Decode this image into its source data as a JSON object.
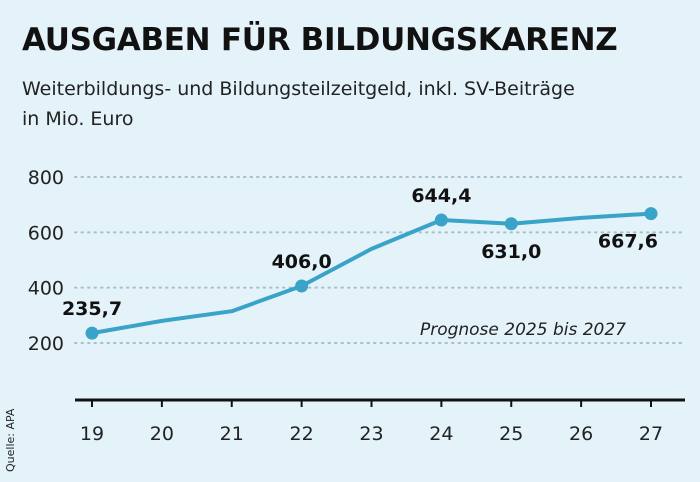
{
  "title": "AUSGABEN FÜR BILDUNGSKARENZ",
  "subtitle_line1": "Weiterbildungs- und Bildungsteilzeitgeld, inkl. SV-Beiträge",
  "subtitle_line2": "in Mio. Euro",
  "source": "Quelle: APA",
  "colors": {
    "background": "#e4f3fa",
    "line": "#3aa3c8",
    "grid": "#a9bfc9",
    "axis": "#111111"
  },
  "chart_data": {
    "type": "line",
    "title": "AUSGABEN FÜR BILDUNGSKARENZ",
    "ylabel": "",
    "xlabel": "",
    "x": [
      19,
      20,
      21,
      22,
      23,
      24,
      25,
      26,
      27
    ],
    "values": [
      235.7,
      280,
      315,
      406.0,
      540,
      644.4,
      631.0,
      652,
      667.6
    ],
    "x_tick_labels": [
      "19",
      "20",
      "21",
      "22",
      "23",
      "24",
      "25",
      "26",
      "27"
    ],
    "y_ticks": [
      200,
      400,
      600,
      800
    ],
    "y_tick_labels": [
      "200",
      "400",
      "600",
      "800"
    ],
    "ylim": [
      0,
      800
    ],
    "grid": "horizontal dotted",
    "markers": [
      {
        "x": 19,
        "y": 235.7,
        "label": "235,7",
        "label_position": "above"
      },
      {
        "x": 22,
        "y": 406.0,
        "label": "406,0",
        "label_position": "above"
      },
      {
        "x": 24,
        "y": 644.4,
        "label": "644,4",
        "label_position": "above"
      },
      {
        "x": 25,
        "y": 631.0,
        "label": "631,0",
        "label_position": "below"
      },
      {
        "x": 27,
        "y": 667.6,
        "label": "667,6",
        "label_position": "below"
      }
    ],
    "annotation": "Prognose 2025 bis 2027"
  }
}
